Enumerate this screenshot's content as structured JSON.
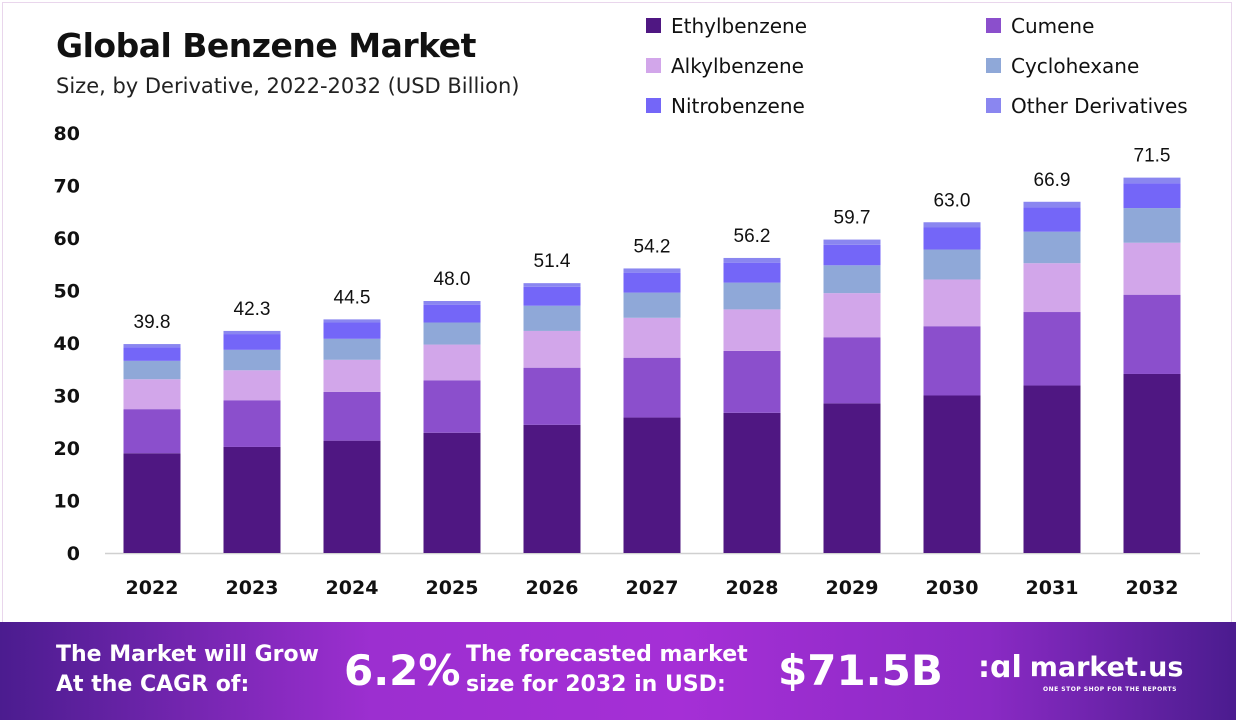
{
  "chart_data": {
    "type": "bar",
    "stacked": true,
    "title": "Global Benzene Market",
    "subtitle": "Size, by Derivative, 2022-2032 (USD Billion)",
    "xlabel": "",
    "ylabel": "",
    "ylim": [
      0,
      80
    ],
    "yticks": [
      0,
      10,
      20,
      30,
      40,
      50,
      60,
      70,
      80
    ],
    "grid": false,
    "legend_position": "top-right",
    "categories": [
      "2022",
      "2023",
      "2024",
      "2025",
      "2026",
      "2027",
      "2028",
      "2029",
      "2030",
      "2031",
      "2032"
    ],
    "totals": [
      "39.8",
      "42.3",
      "44.5",
      "48.0",
      "51.4",
      "54.2",
      "56.2",
      "59.7",
      "63.0",
      "66.9",
      "71.5"
    ],
    "series": [
      {
        "name": "Ethylbenzene",
        "color": "#4f1782",
        "values": [
          19.0,
          20.2,
          21.4,
          22.9,
          24.4,
          25.8,
          26.7,
          28.5,
          30.0,
          31.9,
          34.1
        ]
      },
      {
        "name": "Cumene",
        "color": "#8b4fcc",
        "values": [
          8.4,
          8.9,
          9.3,
          10.0,
          10.9,
          11.4,
          11.8,
          12.6,
          13.2,
          14.0,
          15.1
        ]
      },
      {
        "name": "Alkylbenzene",
        "color": "#d2a6ea",
        "values": [
          5.7,
          5.7,
          6.1,
          6.8,
          7.0,
          7.6,
          7.9,
          8.4,
          8.9,
          9.3,
          9.9
        ]
      },
      {
        "name": "Cyclohexane",
        "color": "#8fa8d8",
        "values": [
          3.5,
          3.9,
          4.0,
          4.2,
          4.8,
          4.8,
          5.1,
          5.3,
          5.7,
          6.0,
          6.6
        ]
      },
      {
        "name": "Nitrobenzene",
        "color": "#7466f8",
        "values": [
          2.6,
          3.0,
          3.1,
          3.4,
          3.6,
          3.8,
          3.8,
          3.9,
          4.2,
          4.6,
          4.7
        ]
      },
      {
        "name": "Other Derivatives",
        "color": "#8a86f0",
        "values": [
          0.6,
          0.6,
          0.6,
          0.7,
          0.7,
          0.8,
          0.9,
          1.0,
          1.0,
          1.1,
          1.1
        ]
      }
    ]
  },
  "footer": {
    "cagr_label_line1": "The Market will Grow",
    "cagr_label_line2": "At the CAGR of:",
    "cagr_value": "6.2%",
    "forecast_label_line1": "The forecasted market",
    "forecast_label_line2": "size for 2032 in USD:",
    "forecast_value": "$71.5B",
    "brand": "market.us",
    "brand_tagline": "ONE STOP SHOP FOR THE REPORTS",
    "brand_icon": "market-us-logo-icon"
  }
}
